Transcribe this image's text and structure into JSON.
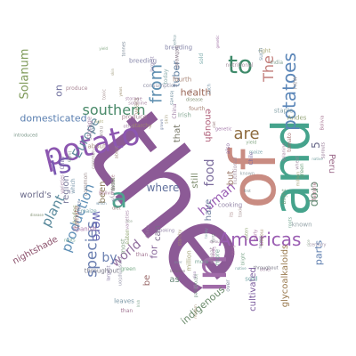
{
  "words": [
    {
      "text": "the",
      "color": "#8c5a96"
    },
    {
      "text": "and",
      "color": "#45a38c"
    },
    {
      "text": "of",
      "color": "#c98c82"
    },
    {
      "text": "in",
      "color": "#a06ba8"
    },
    {
      "text": "potato",
      "color": "#8c56b0"
    },
    {
      "text": "is",
      "color": "#7a58b0"
    },
    {
      "text": "a",
      "color": "#4fa38f"
    },
    {
      "text": "to",
      "color": "#3f8a6a"
    },
    {
      "text": "potatoes",
      "color": "#5b86b8"
    },
    {
      "text": "from",
      "color": "#5f8fb0"
    },
    {
      "text": "The",
      "color": "#c27d7a"
    },
    {
      "text": "are",
      "color": "#8e6b3f"
    },
    {
      "text": "Americas",
      "color": "#9a5db2"
    },
    {
      "text": "southern",
      "color": "#4a8a6a"
    },
    {
      "text": "species",
      "color": "#6b7fb0"
    },
    {
      "text": "plant",
      "color": "#5a8a9c"
    },
    {
      "text": "production",
      "color": "#5e8fb6"
    },
    {
      "text": "were",
      "color": "#6b6bb5"
    },
    {
      "text": "human",
      "color": "#9b5fb5"
    },
    {
      "text": "food",
      "color": "#7a6b9c"
    },
    {
      "text": "crop",
      "color": "#6a8f7a"
    },
    {
      "text": "world",
      "color": "#8f6b9c"
    },
    {
      "text": "Europe",
      "color": "#5f8a9c"
    },
    {
      "text": "by",
      "color": "#6a7fb0"
    },
    {
      "text": "Solanum",
      "color": "#7f9a5a"
    },
    {
      "text": "domesticated",
      "color": "#5a7fb0"
    },
    {
      "text": "nightshade",
      "color": "#8a4f6a"
    },
    {
      "text": "glycoalkaloids",
      "color": "#9a7a4f"
    },
    {
      "text": "parts",
      "color": "#5f7fb0"
    },
    {
      "text": "indigenous",
      "color": "#6a8a6a"
    },
    {
      "text": "cultivated",
      "color": "#7a5a9c"
    },
    {
      "text": "where",
      "color": "#5f6f9c"
    },
    {
      "text": "enough",
      "color": "#b0607a"
    },
    {
      "text": "tuber",
      "color": "#5a7a9c"
    },
    {
      "text": "health",
      "color": "#9c6a5a"
    },
    {
      "text": "Peru",
      "color": "#9c6a8a"
    },
    {
      "text": "region",
      "color": "#7a7a9c"
    },
    {
      "text": "world's",
      "color": "#6a6a8a"
    },
    {
      "text": "been",
      "color": "#8a7a5a"
    },
    {
      "text": "still",
      "color": "#7a8a6a"
    },
    {
      "text": "have",
      "color": "#6a7a9c"
    },
    {
      "text": "but",
      "color": "#9c7a6a"
    },
    {
      "text": "for",
      "color": "#8a6a9c"
    },
    {
      "text": "can",
      "color": "#7a6a8a"
    },
    {
      "text": "as",
      "color": "#6a8a7a"
    },
    {
      "text": "be",
      "color": "#9a6a6a"
    },
    {
      "text": "that",
      "color": "#7a7a6a"
    },
    {
      "text": "on",
      "color": "#6a6a9a"
    },
    {
      "text": "5",
      "color": "#6a6a8a"
    }
  ],
  "small_words": [
    {
      "text": "varieties",
      "color": "#a07aa0"
    },
    {
      "text": "Andes",
      "color": "#8a9a6a"
    },
    {
      "text": "wild",
      "color": "#7a8aa0"
    },
    {
      "text": "starchy",
      "color": "#a08a6a"
    },
    {
      "text": "native",
      "color": "#6a9a9a"
    },
    {
      "text": "Bolivia",
      "color": "#a06a8a"
    },
    {
      "text": "Chile",
      "color": "#7a6aa0"
    },
    {
      "text": "years",
      "color": "#9a8a6a"
    },
    {
      "text": "which",
      "color": "#6a8aa0"
    },
    {
      "text": "its",
      "color": "#a07a7a"
    },
    {
      "text": "yield",
      "color": "#7aa07a"
    },
    {
      "text": "light",
      "color": "#a0a06a"
    },
    {
      "text": "also",
      "color": "#8a6aa0"
    },
    {
      "text": "roots",
      "color": "#6aa08a"
    },
    {
      "text": "tomato",
      "color": "#a06a6a"
    },
    {
      "text": "grown",
      "color": "#6a7aa0"
    },
    {
      "text": "China",
      "color": "#9a7aa0"
    },
    {
      "text": "India",
      "color": "#7a9a8a"
    },
    {
      "text": "toxic",
      "color": "#a08a8a"
    },
    {
      "text": "eaten",
      "color": "#8aa06a"
    },
    {
      "text": "leaves",
      "color": "#6a8a9a"
    },
    {
      "text": "storage",
      "color": "#a07aa0"
    },
    {
      "text": "disease",
      "color": "#7a8a6a"
    },
    {
      "text": "genetic",
      "color": "#9a6aa0"
    },
    {
      "text": "sold",
      "color": "#6aa0a0"
    },
    {
      "text": "modern",
      "color": "#a08a6a"
    },
    {
      "text": "cooking",
      "color": "#8a7aa0"
    },
    {
      "text": "blight",
      "color": "#6a9a7a"
    },
    {
      "text": "famine",
      "color": "#a06a7a"
    },
    {
      "text": "Irish",
      "color": "#7aa08a"
    },
    {
      "text": "million",
      "color": "#9a9a6a"
    },
    {
      "text": "tonnes",
      "color": "#6a7a8a"
    },
    {
      "text": "fourth",
      "color": "#a07a6a"
    },
    {
      "text": "largest",
      "color": "#7a6a9a"
    },
    {
      "text": "rice",
      "color": "#8aa08a"
    },
    {
      "text": "wheat",
      "color": "#a08aa0"
    },
    {
      "text": "maize",
      "color": "#6a9aa0"
    },
    {
      "text": "diet",
      "color": "#9a7a7a"
    },
    {
      "text": "staple",
      "color": "#7a9aa0"
    },
    {
      "text": "Spanish",
      "color": "#a06aa0"
    },
    {
      "text": "introduced",
      "color": "#6a8a7a"
    },
    {
      "text": "century",
      "color": "#9a8aa0"
    },
    {
      "text": "breeding",
      "color": "#7a7aa0"
    },
    {
      "text": "skin",
      "color": "#a09a7a"
    },
    {
      "text": "green",
      "color": "#6aa07a"
    },
    {
      "text": "sprouts",
      "color": "#8a6a8a"
    },
    {
      "text": "solanine",
      "color": "#a07a9a"
    },
    {
      "text": "over",
      "color": "#7a8a9a"
    },
    {
      "text": "than",
      "color": "#9a6a8a"
    },
    {
      "text": "more",
      "color": "#6a9a8a"
    },
    {
      "text": "about",
      "color": "#a08a7a"
    },
    {
      "text": "between",
      "color": "#7a6a7a"
    },
    {
      "text": "known",
      "color": "#8a9aa0"
    },
    {
      "text": "early",
      "color": "#a06a9a"
    },
    {
      "text": "first",
      "color": "#6a7a7a"
    },
    {
      "text": "common",
      "color": "#9a8a8a"
    },
    {
      "text": "today",
      "color": "#7aa0a0"
    },
    {
      "text": "new",
      "color": "#a09a9a"
    },
    {
      "text": "such",
      "color": "#6a8aa0"
    },
    {
      "text": "other",
      "color": "#9a7a9a"
    },
    {
      "text": "most",
      "color": "#7a9a7a"
    },
    {
      "text": "produce",
      "color": "#a07a8a"
    },
    {
      "text": "throughout",
      "color": "#6a6a7a"
    },
    {
      "text": "consumption",
      "color": "#8a8aa0"
    },
    {
      "text": "nutritional",
      "color": "#a08a9a"
    }
  ]
}
